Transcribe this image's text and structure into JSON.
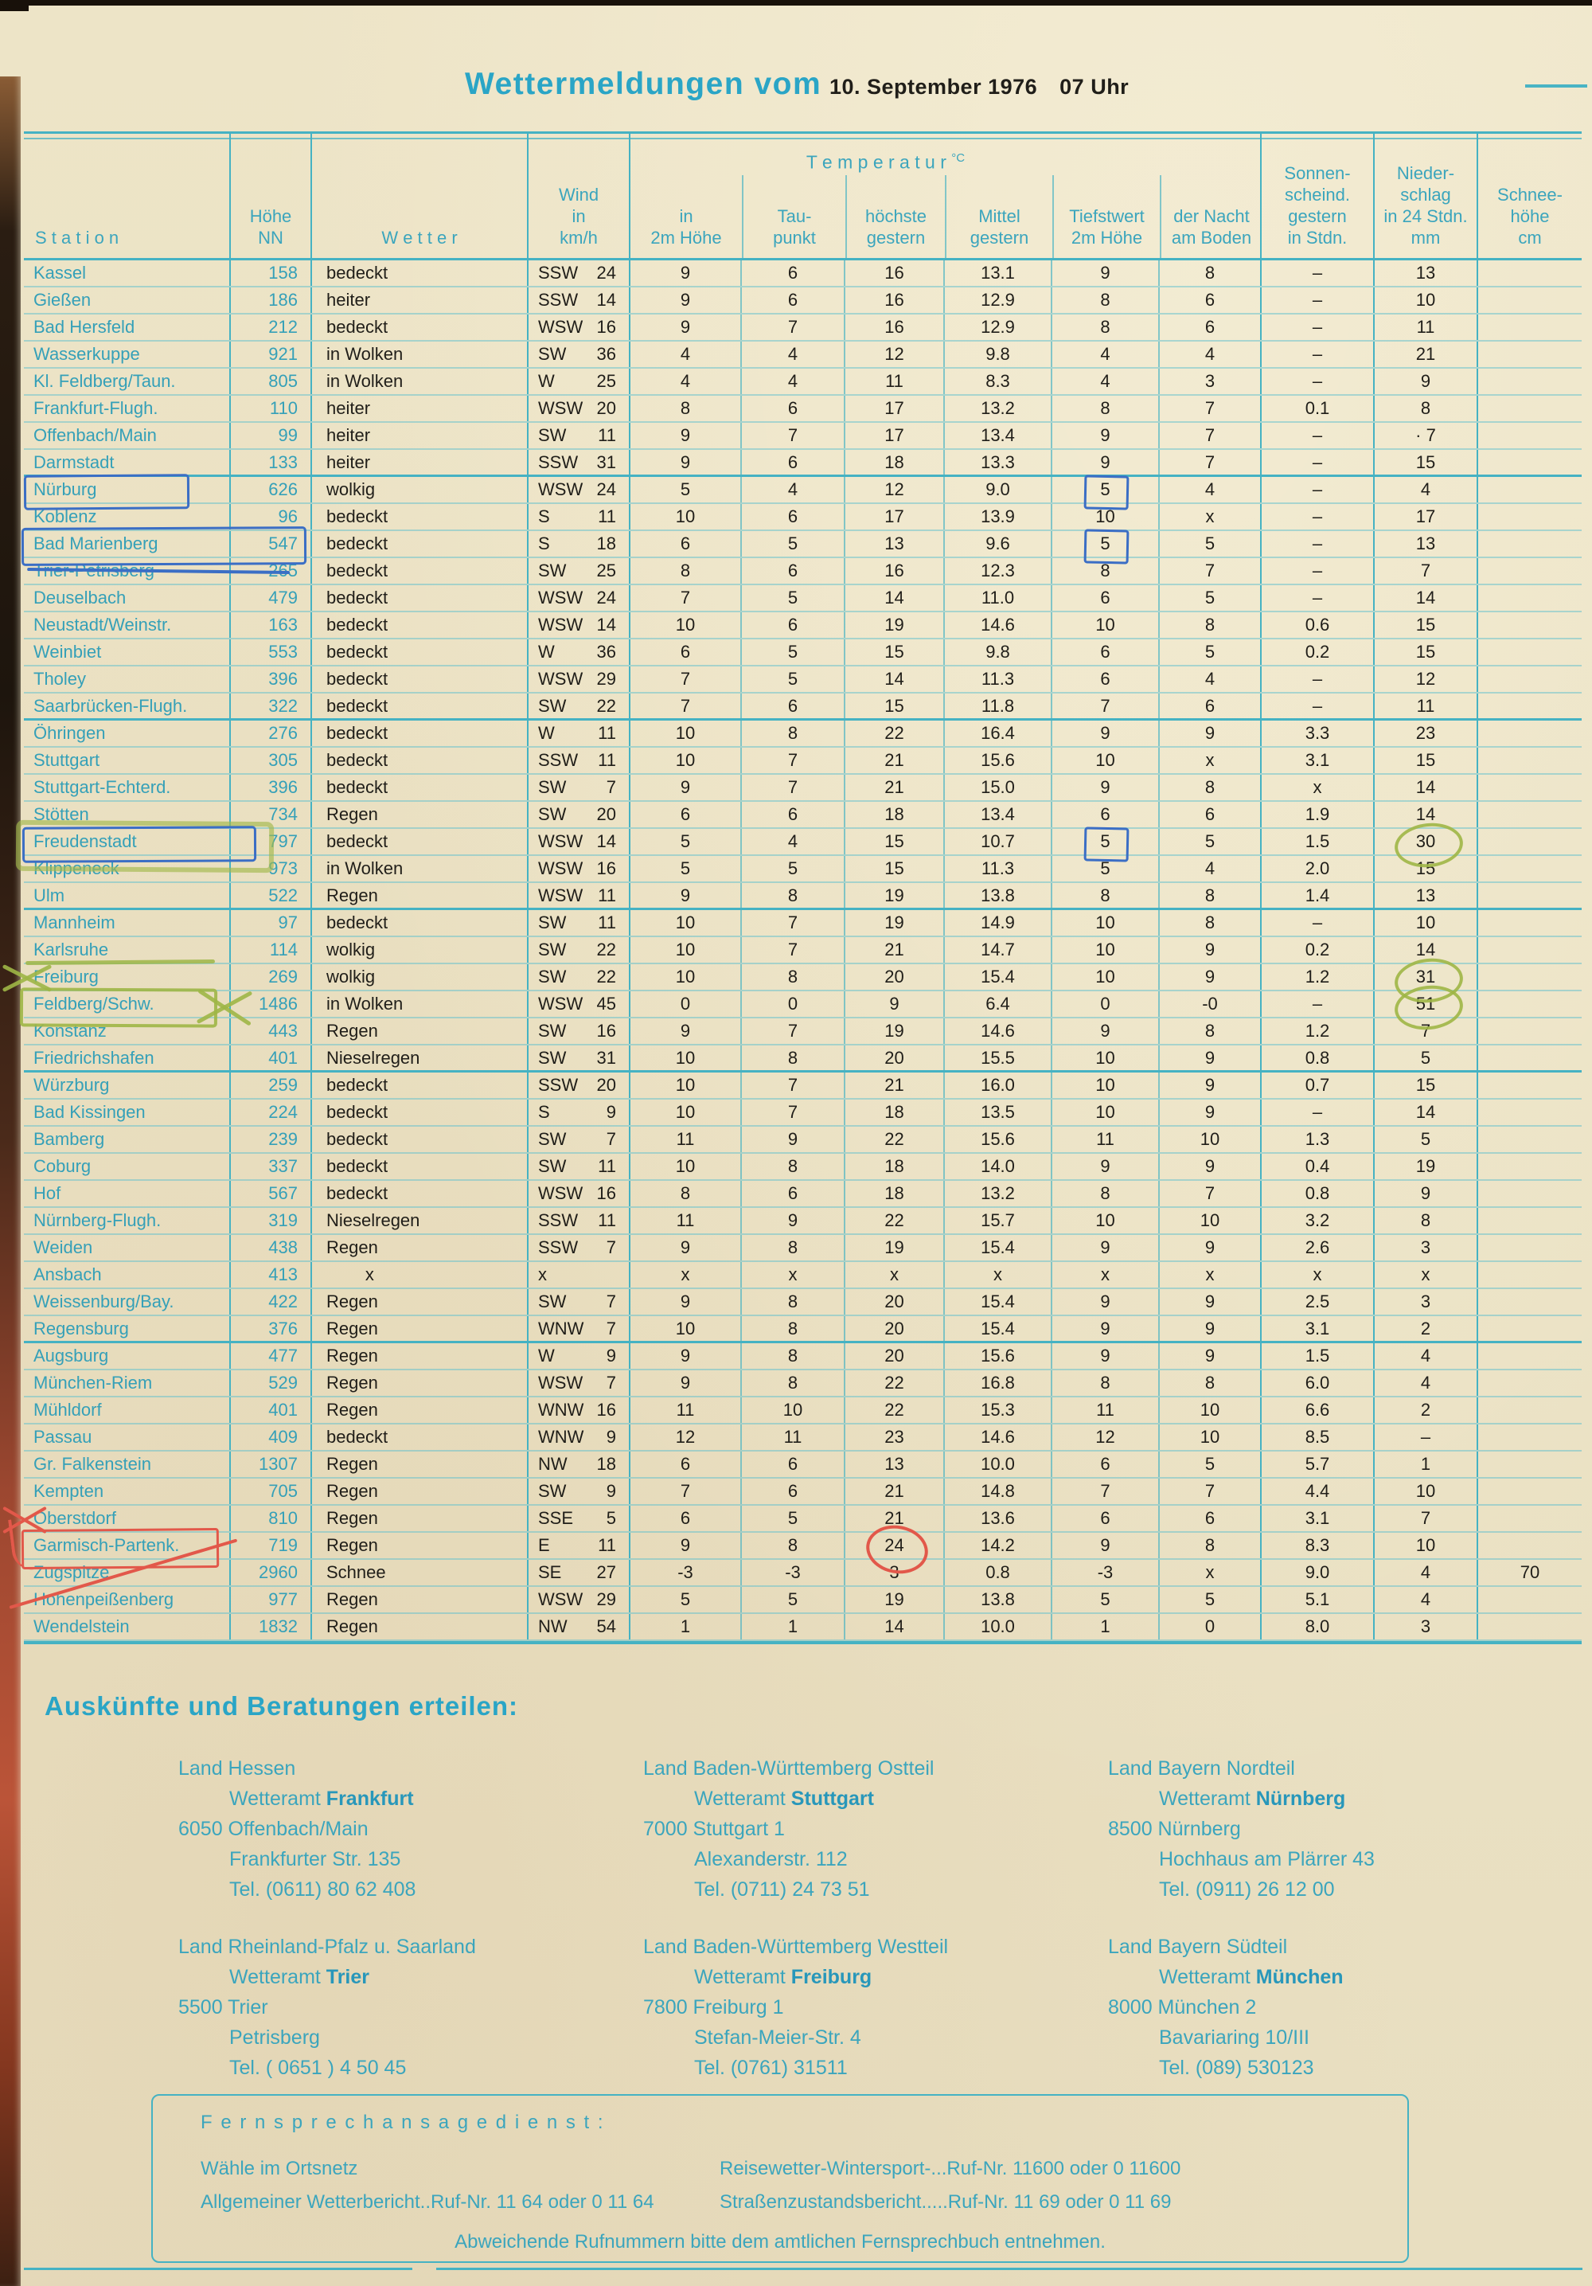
{
  "colors": {
    "paper": "#ece3c6",
    "table_line": "#45b2c3",
    "teal_text": "#35a0b8",
    "ink": "#201e19",
    "pen_blue": "#3b6ec5",
    "pen_green": "#a3b84d",
    "pen_red": "#e2584a"
  },
  "header": {
    "title": "Wettermeldungen vom",
    "date": "10. September 1976",
    "time": "07 Uhr"
  },
  "table": {
    "head": {
      "station": "S t a t i o n",
      "hoehe": "Höhe\nNN",
      "wetter": "W e t t e r",
      "wind": "Wind\nin\nkm/h",
      "temp": "T e m p e r a t u r",
      "temp_unit": "°C",
      "in2m": "in\n2m Höhe",
      "tau": "Tau-\npunkt",
      "hoechste": "höchste\ngestern",
      "mittel": "Mittel\ngestern",
      "tiefst": "Tiefstwert\n2m Höhe",
      "nacht": "der Nacht\nam Boden",
      "sonne": "Sonnen-\nscheind.\ngestern\nin Stdn.",
      "nieder": "Nieder-\nschlag\nin 24 Stdn.\nmm",
      "schnee": "Schnee-\nhöhe\ncm"
    },
    "rows": [
      {
        "st": "Kassel",
        "h": "158",
        "w": "bedeckt",
        "wd": "SSW",
        "ws": "24",
        "t2": "9",
        "tp": "6",
        "hg": "16",
        "mg": "13.1",
        "tw": "9",
        "nb": "8",
        "so": "–",
        "ni": "13",
        "sc": ""
      },
      {
        "st": "Gießen",
        "h": "186",
        "w": "heiter",
        "wd": "SSW",
        "ws": "14",
        "t2": "9",
        "tp": "6",
        "hg": "16",
        "mg": "12.9",
        "tw": "8",
        "nb": "6",
        "so": "–",
        "ni": "10",
        "sc": ""
      },
      {
        "st": "Bad Hersfeld",
        "h": "212",
        "w": "bedeckt",
        "wd": "WSW",
        "ws": "16",
        "t2": "9",
        "tp": "7",
        "hg": "16",
        "mg": "12.9",
        "tw": "8",
        "nb": "6",
        "so": "–",
        "ni": "11",
        "sc": ""
      },
      {
        "st": "Wasserkuppe",
        "h": "921",
        "w": "in Wolken",
        "wd": "SW",
        "ws": "36",
        "t2": "4",
        "tp": "4",
        "hg": "12",
        "mg": "9.8",
        "tw": "4",
        "nb": "4",
        "so": "–",
        "ni": "21",
        "sc": ""
      },
      {
        "st": "Kl. Feldberg/Taun.",
        "h": "805",
        "w": "in Wolken",
        "wd": "W",
        "ws": "25",
        "t2": "4",
        "tp": "4",
        "hg": "11",
        "mg": "8.3",
        "tw": "4",
        "nb": "3",
        "so": "–",
        "ni": "9",
        "sc": ""
      },
      {
        "st": "Frankfurt-Flugh.",
        "h": "110",
        "w": "heiter",
        "wd": "WSW",
        "ws": "20",
        "t2": "8",
        "tp": "6",
        "hg": "17",
        "mg": "13.2",
        "tw": "8",
        "nb": "7",
        "so": "0.1",
        "ni": "8",
        "sc": ""
      },
      {
        "st": "Offenbach/Main",
        "h": "99",
        "w": "heiter",
        "wd": "SW",
        "ws": "11",
        "t2": "9",
        "tp": "7",
        "hg": "17",
        "mg": "13.4",
        "tw": "9",
        "nb": "7",
        "so": "–",
        "ni": "· 7",
        "sc": ""
      },
      {
        "st": "Darmstadt",
        "h": "133",
        "w": "heiter",
        "wd": "SSW",
        "ws": "31",
        "t2": "9",
        "tp": "6",
        "hg": "18",
        "mg": "13.3",
        "tw": "9",
        "nb": "7",
        "so": "–",
        "ni": "15",
        "sc": "",
        "g": true
      },
      {
        "st": "Nürburg",
        "h": "626",
        "w": "wolkig",
        "wd": "WSW",
        "ws": "24",
        "t2": "5",
        "tp": "4",
        "hg": "12",
        "mg": "9.0",
        "tw": "5",
        "nb": "4",
        "so": "–",
        "ni": "4",
        "sc": "",
        "marks": [
          "box-nurburg",
          "box-tiefst"
        ]
      },
      {
        "st": "Koblenz",
        "h": "96",
        "w": "bedeckt",
        "wd": "S",
        "ws": "11",
        "t2": "10",
        "tp": "6",
        "hg": "17",
        "mg": "13.9",
        "tw": "10",
        "nb": "x",
        "so": "–",
        "ni": "17",
        "sc": ""
      },
      {
        "st": "Bad Marienberg",
        "h": "547",
        "w": "bedeckt",
        "wd": "S",
        "ws": "18",
        "t2": "6",
        "tp": "5",
        "hg": "13",
        "mg": "9.6",
        "tw": "5",
        "nb": "5",
        "so": "–",
        "ni": "13",
        "sc": "",
        "marks": [
          "box-marienberg",
          "box-tiefst"
        ]
      },
      {
        "st": "Trier-Petrisberg",
        "h": "265",
        "w": "bedeckt",
        "wd": "SW",
        "ws": "25",
        "t2": "8",
        "tp": "6",
        "hg": "16",
        "mg": "12.3",
        "tw": "8",
        "nb": "7",
        "so": "–",
        "ni": "7",
        "sc": ""
      },
      {
        "st": "Deuselbach",
        "h": "479",
        "w": "bedeckt",
        "wd": "WSW",
        "ws": "24",
        "t2": "7",
        "tp": "5",
        "hg": "14",
        "mg": "11.0",
        "tw": "6",
        "nb": "5",
        "so": "–",
        "ni": "14",
        "sc": ""
      },
      {
        "st": "Neustadt/Weinstr.",
        "h": "163",
        "w": "bedeckt",
        "wd": "WSW",
        "ws": "14",
        "t2": "10",
        "tp": "6",
        "hg": "19",
        "mg": "14.6",
        "tw": "10",
        "nb": "8",
        "so": "0.6",
        "ni": "15",
        "sc": ""
      },
      {
        "st": "Weinbiet",
        "h": "553",
        "w": "bedeckt",
        "wd": "W",
        "ws": "36",
        "t2": "6",
        "tp": "5",
        "hg": "15",
        "mg": "9.8",
        "tw": "6",
        "nb": "5",
        "so": "0.2",
        "ni": "15",
        "sc": ""
      },
      {
        "st": "Tholey",
        "h": "396",
        "w": "bedeckt",
        "wd": "WSW",
        "ws": "29",
        "t2": "7",
        "tp": "5",
        "hg": "14",
        "mg": "11.3",
        "tw": "6",
        "nb": "4",
        "so": "–",
        "ni": "12",
        "sc": ""
      },
      {
        "st": "Saarbrücken-Flugh.",
        "h": "322",
        "w": "bedeckt",
        "wd": "SW",
        "ws": "22",
        "t2": "7",
        "tp": "6",
        "hg": "15",
        "mg": "11.8",
        "tw": "7",
        "nb": "6",
        "so": "–",
        "ni": "11",
        "sc": "",
        "g": true
      },
      {
        "st": "Öhringen",
        "h": "276",
        "w": "bedeckt",
        "wd": "W",
        "ws": "11",
        "t2": "10",
        "tp": "8",
        "hg": "22",
        "mg": "16.4",
        "tw": "9",
        "nb": "9",
        "so": "3.3",
        "ni": "23",
        "sc": ""
      },
      {
        "st": "Stuttgart",
        "h": "305",
        "w": "bedeckt",
        "wd": "SSW",
        "ws": "11",
        "t2": "10",
        "tp": "7",
        "hg": "21",
        "mg": "15.6",
        "tw": "10",
        "nb": "x",
        "so": "3.1",
        "ni": "15",
        "sc": ""
      },
      {
        "st": "Stuttgart-Echterd.",
        "h": "396",
        "w": "bedeckt",
        "wd": "SW",
        "ws": "7",
        "t2": "9",
        "tp": "7",
        "hg": "21",
        "mg": "15.0",
        "tw": "9",
        "nb": "8",
        "so": "x",
        "ni": "14",
        "sc": ""
      },
      {
        "st": "Stötten",
        "h": "734",
        "w": "Regen",
        "wd": "SW",
        "ws": "20",
        "t2": "6",
        "tp": "6",
        "hg": "18",
        "mg": "13.4",
        "tw": "6",
        "nb": "6",
        "so": "1.9",
        "ni": "14",
        "sc": ""
      },
      {
        "st": "Freudenstadt",
        "h": "797",
        "w": "bedeckt",
        "wd": "WSW",
        "ws": "14",
        "t2": "5",
        "tp": "4",
        "hg": "15",
        "mg": "10.7",
        "tw": "5",
        "nb": "5",
        "so": "1.5",
        "ni": "30",
        "sc": "",
        "marks": [
          "glow-freudenstadt",
          "box-freudenstadt",
          "box-tiefst",
          "circle-nieder"
        ]
      },
      {
        "st": "Klippeneck",
        "h": "973",
        "w": "in Wolken",
        "wd": "WSW",
        "ws": "16",
        "t2": "5",
        "tp": "5",
        "hg": "15",
        "mg": "11.3",
        "tw": "5",
        "nb": "4",
        "so": "2.0",
        "ni": "15",
        "sc": ""
      },
      {
        "st": "Ulm",
        "h": "522",
        "w": "Regen",
        "wd": "WSW",
        "ws": "11",
        "t2": "9",
        "tp": "8",
        "hg": "19",
        "mg": "13.8",
        "tw": "8",
        "nb": "8",
        "so": "1.4",
        "ni": "13",
        "sc": "",
        "g": true
      },
      {
        "st": "Mannheim",
        "h": "97",
        "w": "bedeckt",
        "wd": "SW",
        "ws": "11",
        "t2": "10",
        "tp": "7",
        "hg": "19",
        "mg": "14.9",
        "tw": "10",
        "nb": "8",
        "so": "–",
        "ni": "10",
        "sc": ""
      },
      {
        "st": "Karlsruhe",
        "h": "114",
        "w": "wolkig",
        "wd": "SW",
        "ws": "22",
        "t2": "10",
        "tp": "7",
        "hg": "21",
        "mg": "14.7",
        "tw": "10",
        "nb": "9",
        "so": "0.2",
        "ni": "14",
        "sc": ""
      },
      {
        "st": "Freiburg",
        "h": "269",
        "w": "wolkig",
        "wd": "SW",
        "ws": "22",
        "t2": "10",
        "tp": "8",
        "hg": "20",
        "mg": "15.4",
        "tw": "10",
        "nb": "9",
        "so": "1.2",
        "ni": "31",
        "sc": "",
        "marks": [
          "x-left-green",
          "topline-green",
          "circle-nieder"
        ]
      },
      {
        "st": "Feldberg/Schw.",
        "h": "1486",
        "w": "in Wolken",
        "wd": "WSW",
        "ws": "45",
        "t2": "0",
        "tp": "0",
        "hg": "9",
        "mg": "6.4",
        "tw": "0",
        "nb": "-0",
        "so": "–",
        "ni": "51",
        "sc": "",
        "marks": [
          "box-feldberg",
          "circle-nieder"
        ]
      },
      {
        "st": "Konstanz",
        "h": "443",
        "w": "Regen",
        "wd": "SW",
        "ws": "16",
        "t2": "9",
        "tp": "7",
        "hg": "19",
        "mg": "14.6",
        "tw": "9",
        "nb": "8",
        "so": "1.2",
        "ni": "7",
        "sc": ""
      },
      {
        "st": "Friedrichshafen",
        "h": "401",
        "w": "Nieselregen",
        "wd": "SW",
        "ws": "31",
        "t2": "10",
        "tp": "8",
        "hg": "20",
        "mg": "15.5",
        "tw": "10",
        "nb": "9",
        "so": "0.8",
        "ni": "5",
        "sc": "",
        "g": true
      },
      {
        "st": "Würzburg",
        "h": "259",
        "w": "bedeckt",
        "wd": "SSW",
        "ws": "20",
        "t2": "10",
        "tp": "7",
        "hg": "21",
        "mg": "16.0",
        "tw": "10",
        "nb": "9",
        "so": "0.7",
        "ni": "15",
        "sc": ""
      },
      {
        "st": "Bad Kissingen",
        "h": "224",
        "w": "bedeckt",
        "wd": "S",
        "ws": "9",
        "t2": "10",
        "tp": "7",
        "hg": "18",
        "mg": "13.5",
        "tw": "10",
        "nb": "9",
        "so": "–",
        "ni": "14",
        "sc": ""
      },
      {
        "st": "Bamberg",
        "h": "239",
        "w": "bedeckt",
        "wd": "SW",
        "ws": "7",
        "t2": "11",
        "tp": "9",
        "hg": "22",
        "mg": "15.6",
        "tw": "11",
        "nb": "10",
        "so": "1.3",
        "ni": "5",
        "sc": ""
      },
      {
        "st": "Coburg",
        "h": "337",
        "w": "bedeckt",
        "wd": "SW",
        "ws": "11",
        "t2": "10",
        "tp": "8",
        "hg": "18",
        "mg": "14.0",
        "tw": "9",
        "nb": "9",
        "so": "0.4",
        "ni": "19",
        "sc": ""
      },
      {
        "st": "Hof",
        "h": "567",
        "w": "bedeckt",
        "wd": "WSW",
        "ws": "16",
        "t2": "8",
        "tp": "6",
        "hg": "18",
        "mg": "13.2",
        "tw": "8",
        "nb": "7",
        "so": "0.8",
        "ni": "9",
        "sc": ""
      },
      {
        "st": "Nürnberg-Flugh.",
        "h": "319",
        "w": "Nieselregen",
        "wd": "SSW",
        "ws": "11",
        "t2": "11",
        "tp": "9",
        "hg": "22",
        "mg": "15.7",
        "tw": "10",
        "nb": "10",
        "so": "3.2",
        "ni": "8",
        "sc": ""
      },
      {
        "st": "Weiden",
        "h": "438",
        "w": "Regen",
        "wd": "SSW",
        "ws": "7",
        "t2": "9",
        "tp": "8",
        "hg": "19",
        "mg": "15.4",
        "tw": "9",
        "nb": "9",
        "so": "2.6",
        "ni": "3",
        "sc": ""
      },
      {
        "st": "Ansbach",
        "h": "413",
        "w": "        x",
        "wd": "x",
        "ws": "",
        "t2": "x",
        "tp": "x",
        "hg": "x",
        "mg": "x",
        "tw": "x",
        "nb": "x",
        "so": "x",
        "ni": "x",
        "sc": ""
      },
      {
        "st": "Weissenburg/Bay.",
        "h": "422",
        "w": "Regen",
        "wd": "SW",
        "ws": "7",
        "t2": "9",
        "tp": "8",
        "hg": "20",
        "mg": "15.4",
        "tw": "9",
        "nb": "9",
        "so": "2.5",
        "ni": "3",
        "sc": ""
      },
      {
        "st": "Regensburg",
        "h": "376",
        "w": "Regen",
        "wd": "WNW",
        "ws": "7",
        "t2": "10",
        "tp": "8",
        "hg": "20",
        "mg": "15.4",
        "tw": "9",
        "nb": "9",
        "so": "3.1",
        "ni": "2",
        "sc": "",
        "g": true
      },
      {
        "st": "Augsburg",
        "h": "477",
        "w": "Regen",
        "wd": "W",
        "ws": "9",
        "t2": "9",
        "tp": "8",
        "hg": "20",
        "mg": "15.6",
        "tw": "9",
        "nb": "9",
        "so": "1.5",
        "ni": "4",
        "sc": ""
      },
      {
        "st": "München-Riem",
        "h": "529",
        "w": "Regen",
        "wd": "WSW",
        "ws": "7",
        "t2": "9",
        "tp": "8",
        "hg": "22",
        "mg": "16.8",
        "tw": "8",
        "nb": "8",
        "so": "6.0",
        "ni": "4",
        "sc": ""
      },
      {
        "st": "Mühldorf",
        "h": "401",
        "w": "Regen",
        "wd": "WNW",
        "ws": "16",
        "t2": "11",
        "tp": "10",
        "hg": "22",
        "mg": "15.3",
        "tw": "11",
        "nb": "10",
        "so": "6.6",
        "ni": "2",
        "sc": ""
      },
      {
        "st": "Passau",
        "h": "409",
        "w": "bedeckt",
        "wd": "WNW",
        "ws": "9",
        "t2": "12",
        "tp": "11",
        "hg": "23",
        "mg": "14.6",
        "tw": "12",
        "nb": "10",
        "so": "8.5",
        "ni": "–",
        "sc": ""
      },
      {
        "st": "Gr. Falkenstein",
        "h": "1307",
        "w": "Regen",
        "wd": "NW",
        "ws": "18",
        "t2": "6",
        "tp": "6",
        "hg": "13",
        "mg": "10.0",
        "tw": "6",
        "nb": "5",
        "so": "5.7",
        "ni": "1",
        "sc": ""
      },
      {
        "st": "Kempten",
        "h": "705",
        "w": "Regen",
        "wd": "SW",
        "ws": "9",
        "t2": "7",
        "tp": "6",
        "hg": "21",
        "mg": "14.8",
        "tw": "7",
        "nb": "7",
        "so": "4.4",
        "ni": "10",
        "sc": ""
      },
      {
        "st": "Oberstdorf",
        "h": "810",
        "w": "Regen",
        "wd": "SSE",
        "ws": "5",
        "t2": "6",
        "tp": "5",
        "hg": "21",
        "mg": "13.6",
        "tw": "6",
        "nb": "6",
        "so": "3.1",
        "ni": "7",
        "sc": "",
        "marks": [
          "x-left-red",
          "hook-red"
        ]
      },
      {
        "st": "Garmisch-Partenk.",
        "h": "719",
        "w": "Regen",
        "wd": "E",
        "ws": "11",
        "t2": "9",
        "tp": "8",
        "hg": "24",
        "mg": "14.2",
        "tw": "9",
        "nb": "8",
        "so": "8.3",
        "ni": "10",
        "sc": "",
        "marks": [
          "box-garmisch",
          "circle-hoechste",
          "tail-red"
        ]
      },
      {
        "st": "Zugspitze",
        "h": "2960",
        "w": "Schnee",
        "wd": "SE",
        "ws": "27",
        "t2": "-3",
        "tp": "-3",
        "hg": "3",
        "mg": "0.8",
        "tw": "-3",
        "nb": "x",
        "so": "9.0",
        "ni": "4",
        "sc": "70"
      },
      {
        "st": "Hohenpeißenberg",
        "h": "977",
        "w": "Regen",
        "wd": "WSW",
        "ws": "29",
        "t2": "5",
        "tp": "5",
        "hg": "19",
        "mg": "13.8",
        "tw": "5",
        "nb": "5",
        "so": "5.1",
        "ni": "4",
        "sc": ""
      },
      {
        "st": "Wendelstein",
        "h": "1832",
        "w": "Regen",
        "wd": "NW",
        "ws": "54",
        "t2": "1",
        "tp": "1",
        "hg": "14",
        "mg": "10.0",
        "tw": "1",
        "nb": "0",
        "so": "8.0",
        "ni": "3",
        "sc": ""
      }
    ]
  },
  "footer": {
    "heading": "Auskünfte und Beratungen erteilen:",
    "contacts": [
      {
        "region": "Land Hessen",
        "office": "Wetteramt ",
        "name": "Frankfurt",
        "addr1": "6050 Offenbach/Main",
        "addr2": "Frankfurter Str. 135",
        "tel": "Tel. (0611) 80 62 408"
      },
      {
        "region": "Land Baden-Württemberg Ostteil",
        "office": "Wetteramt ",
        "name": "Stuttgart",
        "addr1": "7000 Stuttgart 1",
        "addr2": "Alexanderstr.  112",
        "tel": "Tel. (0711) 24 73 51"
      },
      {
        "region": "Land Bayern Nordteil",
        "office": "Wetteramt ",
        "name": "Nürnberg",
        "addr1": "8500 Nürnberg",
        "addr2": "Hochhaus am Plärrer 43",
        "tel": "Tel. (0911) 26 12 00"
      },
      {
        "region": "Land Rheinland-Pfalz u. Saarland",
        "office": "Wetteramt ",
        "name": "Trier",
        "addr1": "5500 Trier",
        "addr2": "Petrisberg",
        "tel": "Tel. ( 0651 )  4 50 45"
      },
      {
        "region": "Land Baden-Württemberg Westteil",
        "office": "Wetteramt ",
        "name": "Freiburg",
        "addr1": "7800 Freiburg 1",
        "addr2": "Stefan-Meier-Str. 4",
        "tel": "Tel. (0761) 31511"
      },
      {
        "region": "Land Bayern Südteil",
        "office": "Wetteramt ",
        "name": "München",
        "addr1": "8000 München 2",
        "addr2": "Bavariaring  10/III",
        "tel": "Tel. (089) 530123"
      }
    ]
  },
  "phone_box": {
    "heading": "F e r n s p r e c h a n s a g e d i e n s t :",
    "left1": "Wähle im Ortsnetz",
    "left2": "Allgemeiner Wetterbericht..Ruf-Nr. 11 64 oder 0 11 64",
    "right1": "Reisewetter-Wintersport-...Ruf-Nr. 11600 oder 0 11600",
    "right2": "Straßenzustandsbericht.....Ruf-Nr. 11 69 oder 0 11 69",
    "note": "Abweichende Rufnummern bitte dem amtlichen Fernsprechbuch entnehmen."
  }
}
